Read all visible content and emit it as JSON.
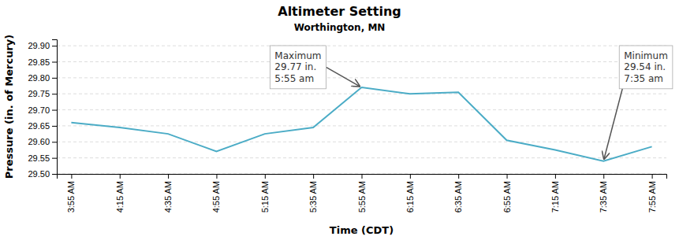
{
  "chart_data": {
    "type": "line",
    "title": "Altimeter Setting",
    "subtitle": "Worthington, MN",
    "xlabel": "Time (CDT)",
    "ylabel": "Pressure (in. of Mercury)",
    "categories": [
      "3:55 AM",
      "4:15 AM",
      "4:35 AM",
      "4:55 AM",
      "5:15 AM",
      "5:35 AM",
      "5:55 AM",
      "6:15 AM",
      "6:35 AM",
      "6:55 AM",
      "7:15 AM",
      "7:35 AM",
      "7:55 AM"
    ],
    "values": [
      29.66,
      29.645,
      29.625,
      29.57,
      29.625,
      29.645,
      29.77,
      29.75,
      29.755,
      29.605,
      29.575,
      29.54,
      29.585
    ],
    "color": "#4BACC6",
    "ylim": [
      29.5,
      29.92
    ],
    "yticks": [
      {
        "value": 29.5,
        "label": "29.50"
      },
      29.55,
      {
        "value": 29.6,
        "label": "29.60"
      },
      29.65,
      {
        "value": 29.7,
        "label": "29.70"
      },
      29.75,
      {
        "value": 29.8,
        "label": "29.80"
      },
      29.85,
      {
        "value": 29.9,
        "label": "29.90"
      }
    ],
    "grid": true,
    "annotations": [
      {
        "text": "Maximum\n29.77 in.\n5:55 am",
        "x": "5:55 AM"
      },
      {
        "text": "Minimum\n29.54 in.\n7:35 am",
        "x": "7:35 AM"
      }
    ]
  }
}
